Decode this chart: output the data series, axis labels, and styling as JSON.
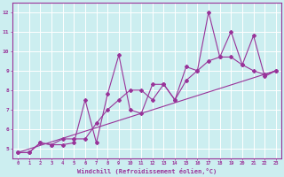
{
  "bg_color": "#cceef0",
  "grid_color": "#aadddd",
  "line_color": "#993399",
  "xlabel": "Windchill (Refroidissement éolien,°C)",
  "xlim": [
    -0.5,
    23.5
  ],
  "ylim": [
    4.5,
    12.5
  ],
  "xticks": [
    0,
    1,
    2,
    3,
    4,
    5,
    6,
    7,
    8,
    9,
    10,
    11,
    12,
    13,
    14,
    15,
    16,
    17,
    18,
    19,
    20,
    21,
    22,
    23
  ],
  "yticks": [
    5,
    6,
    7,
    8,
    9,
    10,
    11,
    12
  ],
  "series1_x": [
    0,
    1,
    2,
    3,
    4,
    5,
    6,
    7,
    8,
    9,
    10,
    11,
    12,
    13,
    14,
    15,
    16,
    17,
    18,
    19,
    20,
    21,
    22,
    23
  ],
  "series1_y": [
    4.8,
    4.8,
    5.3,
    5.2,
    5.2,
    5.3,
    7.5,
    5.3,
    7.8,
    9.8,
    7.0,
    6.8,
    8.3,
    8.3,
    7.5,
    9.2,
    9.0,
    12.0,
    9.7,
    11.0,
    9.3,
    9.0,
    8.8,
    9.0
  ],
  "series2_x": [
    0,
    1,
    2,
    3,
    4,
    5,
    6,
    7,
    8,
    9,
    10,
    11,
    12,
    13,
    14,
    15,
    16,
    17,
    18,
    19,
    20,
    21,
    22,
    23
  ],
  "series2_y": [
    4.8,
    4.8,
    5.3,
    5.2,
    5.5,
    5.5,
    5.5,
    6.3,
    7.0,
    7.5,
    8.0,
    8.0,
    7.5,
    8.3,
    7.5,
    8.5,
    9.0,
    9.5,
    9.7,
    9.7,
    9.3,
    10.8,
    8.7,
    9.0
  ],
  "trend_x": [
    0,
    23
  ],
  "trend_y": [
    4.8,
    9.0
  ]
}
